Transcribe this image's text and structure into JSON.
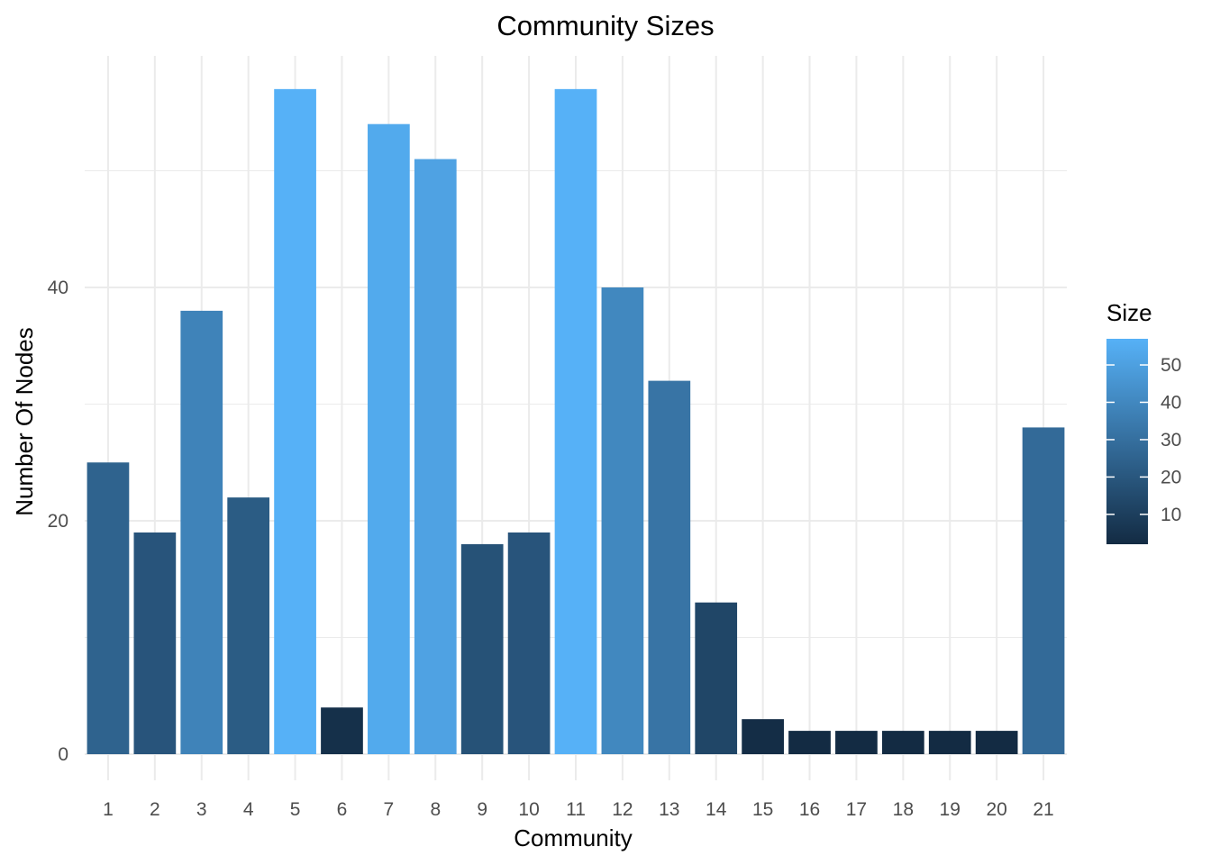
{
  "chart_data": {
    "type": "bar",
    "title": "Community Sizes",
    "xlabel": "Community",
    "ylabel": "Number Of Nodes",
    "categories": [
      "1",
      "2",
      "3",
      "4",
      "5",
      "6",
      "7",
      "8",
      "9",
      "10",
      "11",
      "12",
      "13",
      "14",
      "15",
      "16",
      "17",
      "18",
      "19",
      "20",
      "21"
    ],
    "values": [
      25,
      19,
      38,
      22,
      57,
      4,
      54,
      51,
      18,
      19,
      57,
      40,
      32,
      13,
      3,
      2,
      2,
      2,
      2,
      2,
      28
    ],
    "ylim": [
      0,
      60
    ],
    "yticks": [
      0,
      20,
      40
    ],
    "grid": true,
    "fill_scale": {
      "low_color": "#132B43",
      "high_color": "#56B1F7",
      "min": 2,
      "max": 57
    },
    "legend": {
      "title": "Size",
      "position": "right",
      "ticks": [
        10,
        20,
        30,
        40,
        50
      ]
    }
  }
}
